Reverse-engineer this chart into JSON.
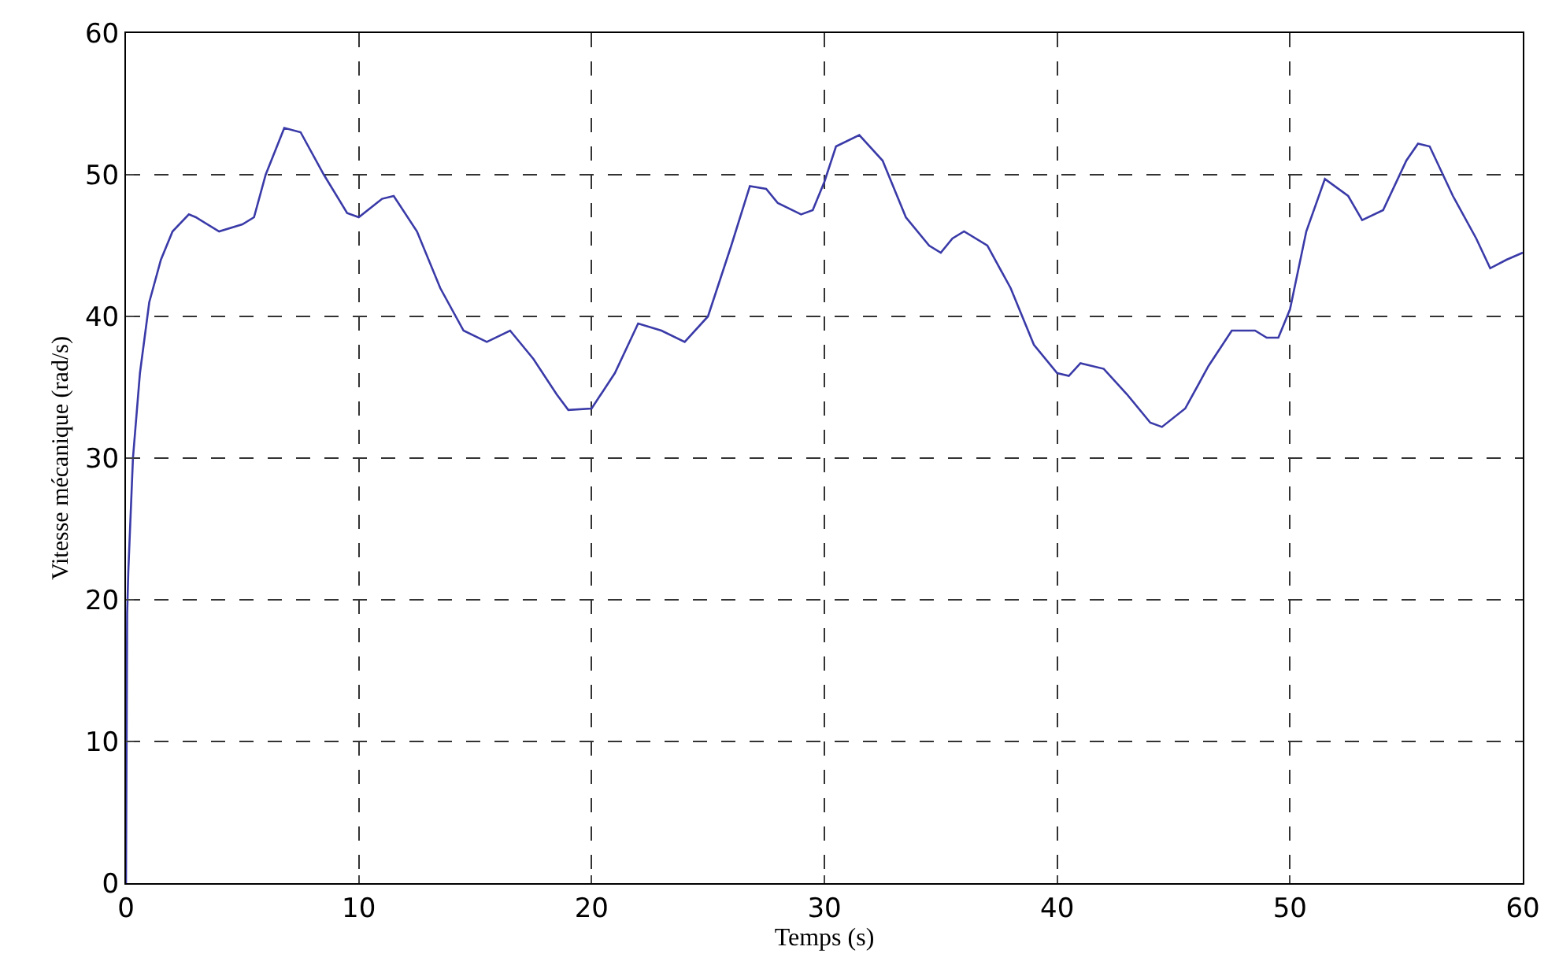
{
  "chart_data": {
    "type": "line",
    "xlabel": "Temps (s)",
    "ylabel": "Vitesse mécanique (rad/s)",
    "x": [
      0,
      0.05,
      0.1,
      0.3,
      0.6,
      1,
      1.5,
      2,
      2.7,
      3,
      4,
      5,
      5.5,
      6,
      6.8,
      7.5,
      8.5,
      9.5,
      10,
      11,
      11.5,
      12.5,
      13.5,
      14.5,
      15.5,
      16.5,
      17.5,
      18.5,
      19,
      20,
      21,
      22,
      23,
      24,
      25,
      26,
      26.8,
      27.5,
      28,
      29,
      29.5,
      30,
      30.5,
      31.5,
      32.5,
      33.5,
      34.5,
      35,
      35.5,
      36,
      37,
      38,
      39,
      40,
      40.5,
      41,
      42,
      43,
      44,
      44.5,
      45.5,
      46.5,
      47.5,
      48.5,
      49,
      49.5,
      50,
      50.7,
      51.5,
      52.5,
      53.1,
      54,
      55,
      55.5,
      56,
      57,
      58,
      58.6,
      59.3,
      60
    ],
    "series": [
      {
        "color": "#3a3aa8",
        "values": [
          0,
          19,
          22,
          30,
          36,
          41,
          44,
          46,
          47.2,
          47,
          46,
          46.5,
          47,
          50,
          53.3,
          53,
          50,
          47.3,
          47,
          48.3,
          48.5,
          46,
          42,
          39,
          38.2,
          39,
          37,
          34.5,
          33.4,
          33.5,
          36,
          39.5,
          39,
          38.2,
          40,
          45,
          49.2,
          49,
          48,
          47.2,
          47.5,
          49.5,
          52,
          52.8,
          51,
          47,
          45,
          44.5,
          45.5,
          46,
          45,
          42,
          38,
          36,
          35.8,
          36.7,
          36.3,
          34.5,
          32.5,
          32.2,
          33.5,
          36.5,
          39,
          39,
          38.5,
          38.5,
          40.5,
          46,
          49.7,
          48.5,
          46.8,
          47.5,
          51,
          52.2,
          52,
          48.5,
          45.5,
          43.4,
          44,
          44.5
        ]
      }
    ],
    "xlim": [
      0,
      60
    ],
    "xticks": [
      0,
      10,
      20,
      30,
      40,
      50,
      60
    ],
    "ylim": [
      0,
      60
    ],
    "yticks": [
      0,
      10,
      20,
      30,
      40,
      50,
      60
    ],
    "grid": true,
    "marker": "none",
    "line_style": "solid"
  }
}
